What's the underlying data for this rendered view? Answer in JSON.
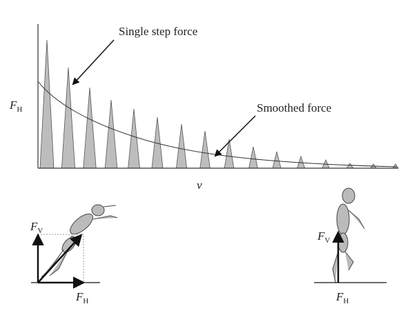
{
  "plot": {
    "y_label": {
      "symbol": "F",
      "subscript": "H"
    },
    "x_label": "v",
    "annotations": [
      "Single step force",
      "Smoothed force"
    ]
  },
  "figures": [
    {
      "vertical_label": {
        "symbol": "F",
        "subscript": "V"
      },
      "horizontal_label": {
        "symbol": "F",
        "subscript": "H"
      }
    },
    {
      "vertical_label": {
        "symbol": "F",
        "subscript": "V"
      },
      "horizontal_label": {
        "symbol": "F",
        "subscript": "H"
      }
    }
  ]
}
